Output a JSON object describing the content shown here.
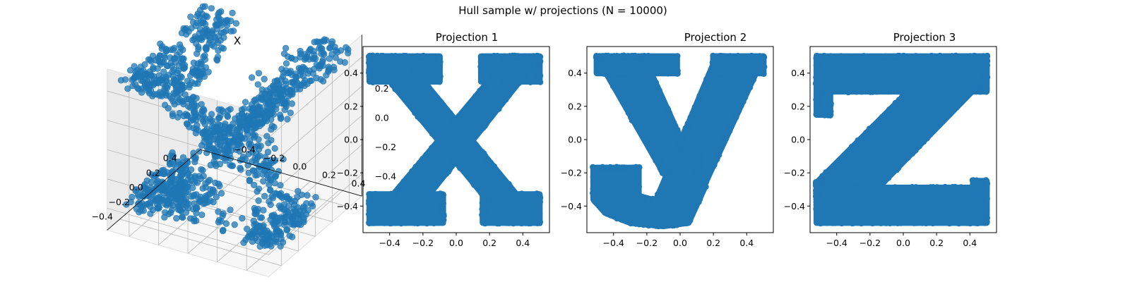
{
  "figure": {
    "suptitle": "Hull sample w/ projections (N = 10000)"
  },
  "style": {
    "point_color": "#1f77b4",
    "pane_color": "#f0f0f0",
    "grid_color": "#b0b0b0"
  },
  "chart_data": [
    {
      "type": "scatter",
      "projection": "3d",
      "title": "X",
      "n_points": 10000,
      "xlim": [
        -0.55,
        0.55
      ],
      "ylim": [
        -0.55,
        0.55
      ],
      "zlim": [
        -0.55,
        0.55
      ],
      "x_ticks": [
        -0.4,
        -0.2,
        0.0,
        0.2,
        0.4
      ],
      "y_ticks": [
        -0.4,
        -0.2,
        0.0,
        0.2,
        0.4
      ],
      "z_ticks": [
        -0.4,
        -0.2,
        0.0,
        0.2,
        0.4
      ],
      "x_tick_labels": [
        "−0.4",
        "−0.2",
        "0.0",
        "0.2",
        "0.4"
      ],
      "y_tick_labels": [
        "−0.4",
        "−0.2",
        "0.0",
        "0.2",
        "0.4"
      ],
      "z_tick_labels": [
        "−0.4",
        "−0.2",
        "0.0",
        "0.2",
        "0.4"
      ],
      "grid": true,
      "description_shape": "letter volume whose projections are x, y, z"
    },
    {
      "type": "scatter",
      "title": "Projection 1",
      "shape": "x",
      "xlim": [
        -0.56,
        0.56
      ],
      "ylim": [
        -0.56,
        0.56
      ],
      "x_ticks": [
        -0.4,
        -0.2,
        0.0,
        0.2,
        0.4
      ],
      "y_ticks": [
        -0.4,
        -0.2,
        0.0,
        0.2,
        0.4
      ],
      "x_tick_labels": [
        "−0.4",
        "−0.2",
        "0.0",
        "0.2",
        "0.4"
      ],
      "y_tick_labels": [
        "−0.4",
        "−0.2",
        "0.0",
        "0.2",
        "0.4"
      ],
      "grid": false,
      "polygons": [
        [
          [
            -0.52,
            0.5
          ],
          [
            -0.32,
            0.5
          ],
          [
            0.5,
            -0.5
          ],
          [
            0.3,
            -0.5
          ]
        ],
        [
          [
            0.32,
            0.5
          ],
          [
            0.5,
            0.5
          ],
          [
            -0.3,
            -0.5
          ],
          [
            -0.52,
            -0.5
          ]
        ],
        [
          [
            -0.52,
            0.5
          ],
          [
            -0.1,
            0.5
          ],
          [
            -0.1,
            0.35
          ],
          [
            -0.52,
            0.35
          ]
        ],
        [
          [
            0.15,
            0.5
          ],
          [
            0.5,
            0.5
          ],
          [
            0.5,
            0.35
          ],
          [
            0.15,
            0.35
          ]
        ],
        [
          [
            -0.52,
            -0.33
          ],
          [
            -0.08,
            -0.33
          ],
          [
            -0.08,
            -0.5
          ],
          [
            -0.52,
            -0.5
          ]
        ],
        [
          [
            0.16,
            -0.33
          ],
          [
            0.5,
            -0.33
          ],
          [
            0.5,
            -0.5
          ],
          [
            0.16,
            -0.5
          ]
        ]
      ]
    },
    {
      "type": "scatter",
      "title": "Projection 2",
      "shape": "y",
      "xlim": [
        -0.56,
        0.56
      ],
      "ylim": [
        -0.56,
        0.56
      ],
      "x_ticks": [
        -0.4,
        -0.2,
        0.0,
        0.2,
        0.4
      ],
      "y_ticks": [
        -0.4,
        -0.2,
        0.0,
        0.2,
        0.4
      ],
      "x_tick_labels": [
        "−0.4",
        "−0.2",
        "0.0",
        "0.2",
        "0.4"
      ],
      "y_tick_labels": [
        "−0.4",
        "−0.2",
        "0.0",
        "0.2",
        "0.4"
      ],
      "grid": false,
      "polygons": [
        [
          [
            -0.5,
            0.5
          ],
          [
            -0.22,
            0.5
          ],
          [
            0.05,
            -0.1
          ],
          [
            -0.1,
            -0.2
          ]
        ],
        [
          [
            0.22,
            0.5
          ],
          [
            0.5,
            0.5
          ],
          [
            0.05,
            -0.48
          ],
          [
            -0.15,
            -0.38
          ]
        ],
        [
          [
            -0.5,
            0.5
          ],
          [
            -0.02,
            0.5
          ],
          [
            -0.02,
            0.4
          ],
          [
            -0.5,
            0.4
          ]
        ],
        [
          [
            0.2,
            0.5
          ],
          [
            0.5,
            0.5
          ],
          [
            0.5,
            0.4
          ],
          [
            0.2,
            0.4
          ]
        ],
        [
          [
            -0.52,
            -0.17
          ],
          [
            -0.25,
            -0.17
          ],
          [
            -0.25,
            -0.34
          ],
          [
            -0.1,
            -0.38
          ],
          [
            0.05,
            -0.34
          ],
          [
            0.15,
            -0.28
          ],
          [
            0.05,
            -0.5
          ],
          [
            -0.1,
            -0.52
          ],
          [
            -0.3,
            -0.5
          ],
          [
            -0.45,
            -0.44
          ],
          [
            -0.52,
            -0.36
          ]
        ],
        [
          [
            -0.18,
            -0.05
          ],
          [
            0.12,
            -0.05
          ],
          [
            0.1,
            -0.25
          ],
          [
            -0.05,
            -0.25
          ]
        ]
      ]
    },
    {
      "type": "scatter",
      "title": "Projection 3",
      "shape": "z",
      "xlim": [
        -0.56,
        0.56
      ],
      "ylim": [
        -0.56,
        0.56
      ],
      "x_ticks": [
        -0.4,
        -0.2,
        0.0,
        0.2,
        0.4
      ],
      "y_ticks": [
        -0.4,
        -0.2,
        0.0,
        0.2,
        0.4
      ],
      "x_tick_labels": [
        "−0.4",
        "−0.2",
        "0.0",
        "0.2",
        "0.4"
      ],
      "y_tick_labels": [
        "−0.4",
        "−0.2",
        "0.0",
        "0.2",
        "0.4"
      ],
      "grid": false,
      "polygons": [
        [
          [
            -0.52,
            0.5
          ],
          [
            0.5,
            0.5
          ],
          [
            0.5,
            0.29
          ],
          [
            -0.52,
            0.29
          ]
        ],
        [
          [
            -0.52,
            0.29
          ],
          [
            -0.44,
            0.29
          ],
          [
            -0.44,
            0.15
          ],
          [
            -0.52,
            0.15
          ]
        ],
        [
          [
            0.24,
            0.5
          ],
          [
            0.5,
            0.5
          ],
          [
            0.5,
            0.38
          ],
          [
            -0.24,
            -0.38
          ],
          [
            -0.52,
            -0.38
          ],
          [
            -0.52,
            -0.26
          ]
        ],
        [
          [
            -0.52,
            -0.29
          ],
          [
            0.5,
            -0.29
          ],
          [
            0.5,
            -0.5
          ],
          [
            -0.52,
            -0.5
          ]
        ],
        [
          [
            0.42,
            -0.25
          ],
          [
            0.5,
            -0.25
          ],
          [
            0.5,
            -0.32
          ],
          [
            0.42,
            -0.32
          ]
        ]
      ]
    }
  ]
}
